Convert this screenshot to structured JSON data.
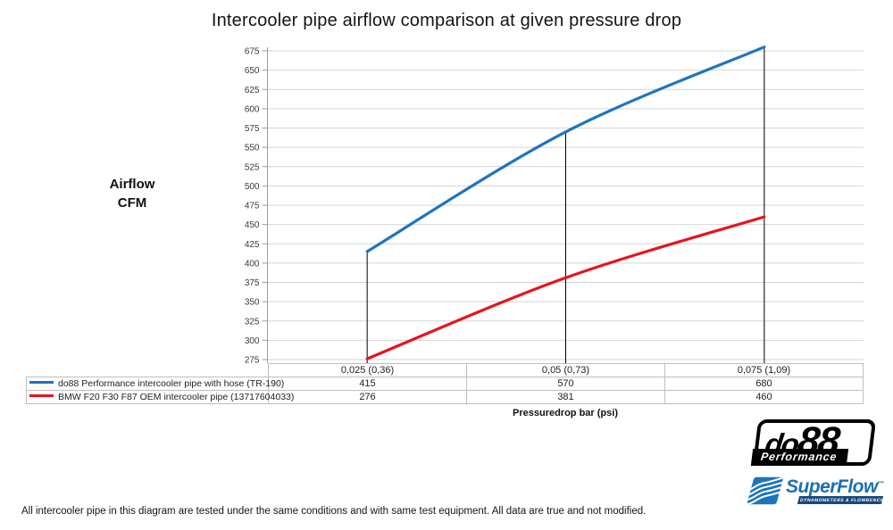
{
  "title": "Intercooler pipe airflow comparison at given pressure drop",
  "chart_data": {
    "type": "line",
    "title": "Intercooler pipe airflow comparison at given pressure drop",
    "x_categories": [
      "0,025 (0,36)",
      "0,05 (0,73)",
      "0,075 (1,09)"
    ],
    "xlabel": "Pressuredrop bar (psi)",
    "ylabel": "Airflow CFM",
    "ylabel_lines": [
      "Airflow",
      "CFM"
    ],
    "ylim": [
      275,
      675
    ],
    "ytick_step": 25,
    "yticks": [
      275,
      300,
      325,
      350,
      375,
      400,
      425,
      450,
      475,
      500,
      525,
      550,
      575,
      600,
      625,
      650,
      675
    ],
    "grid": true,
    "line_style": "smooth",
    "legend_position": "table-left",
    "series": [
      {
        "name": "do88 Performance intercooler pipe with hose (TR-190)",
        "color": "#1F74BE",
        "values": [
          415,
          570,
          680
        ]
      },
      {
        "name": "BMW F20 F30 F87 OEM intercooler pipe (13717604033)",
        "color": "#E8141B",
        "values": [
          276,
          381,
          460
        ]
      }
    ],
    "drop_lines": {
      "color": "#000000",
      "from_series": 0
    }
  },
  "footer": {
    "text": "All intercooler pipe in this diagram are tested under the same conditions and with same test equipment. All data are true and not modified."
  },
  "logos": {
    "do88": {
      "part1": "do",
      "part2": "88",
      "subtext": "Performance"
    },
    "superflow": {
      "text": "SuperFlow",
      "trademark": "™",
      "tagline": "DYNAMOMETERS & FLOWBENCHES"
    }
  },
  "colors": {
    "grid": "#D4D4D4",
    "axis": "#9E9E9E",
    "tick_label": "#3a3a3a",
    "drop_line": "#000000",
    "table_border": "#BFBFBF",
    "superflow_blue": "#1C75BC",
    "superflow_dark": "#17497A"
  }
}
